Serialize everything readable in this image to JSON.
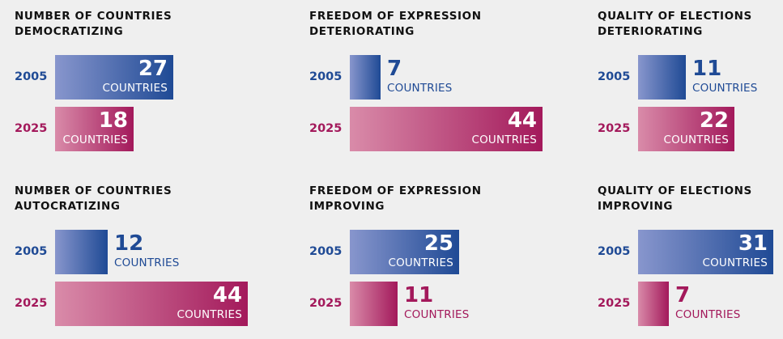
{
  "colors": {
    "y2005": "#1f4a95",
    "y2005_light": "#8896cd",
    "y2025": "#a3195b",
    "y2025_light": "#d98ba9",
    "title": "#111111"
  },
  "unit_label": "COUNTRIES",
  "chart_data": [
    {
      "type": "bar",
      "title_lines": [
        "NUMBER OF COUNTRIES",
        "DEMOCRATIZING"
      ],
      "categories": [
        "2005",
        "2025"
      ],
      "values": [
        27,
        18
      ]
    },
    {
      "type": "bar",
      "title_lines": [
        "FREEDOM OF EXPRESSION",
        "DETERIORATING"
      ],
      "categories": [
        "2005",
        "2025"
      ],
      "values": [
        7,
        44
      ]
    },
    {
      "type": "bar",
      "title_lines": [
        "QUALITY OF ELECTIONS",
        "DETERIORATING"
      ],
      "categories": [
        "2005",
        "2025"
      ],
      "values": [
        11,
        22
      ]
    },
    {
      "type": "bar",
      "title_lines": [
        "NUMBER OF COUNTRIES",
        "AUTOCRATIZING"
      ],
      "categories": [
        "2005",
        "2025"
      ],
      "values": [
        12,
        44
      ]
    },
    {
      "type": "bar",
      "title_lines": [
        "FREEDOM OF EXPRESSION",
        "IMPROVING"
      ],
      "categories": [
        "2005",
        "2025"
      ],
      "values": [
        25,
        11
      ]
    },
    {
      "type": "bar",
      "title_lines": [
        "QUALITY OF ELECTIONS",
        "IMPROVING"
      ],
      "categories": [
        "2005",
        "2025"
      ],
      "values": [
        31,
        7
      ]
    }
  ]
}
